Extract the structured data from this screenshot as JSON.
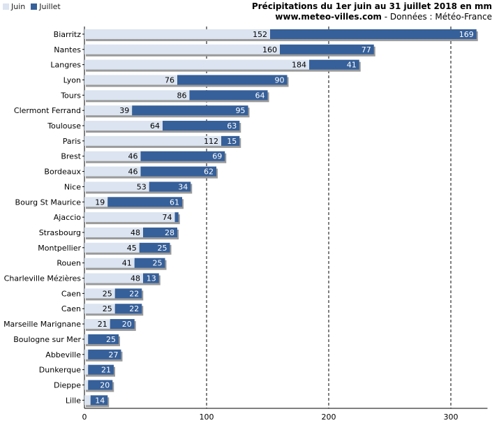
{
  "legend": {
    "juin": "Juin",
    "juillet": "Juillet"
  },
  "header": {
    "title": "Précipitations du 1er juin au 31 juillet 2018 en mm",
    "site": "www.meteo-villes.com",
    "source": " - Données : Météo-France"
  },
  "colors": {
    "juin": "#dbe4f0",
    "juillet": "#36609a",
    "shadow": "#9a9a9a"
  },
  "chart_data": {
    "type": "bar",
    "orientation": "horizontal",
    "stacked": true,
    "title": "Précipitations du 1er juin au 31 juillet 2018 en mm",
    "xlabel": "",
    "ylabel": "",
    "xlim": [
      0,
      330
    ],
    "xticks": [
      0,
      100,
      200,
      300
    ],
    "categories": [
      "Biarritz",
      "Nantes",
      "Langres",
      "Lyon",
      "Tours",
      "Clermont Ferrand",
      "Toulouse",
      "Paris",
      "Brest",
      "Bordeaux",
      "Nice",
      "Bourg St Maurice",
      "Ajaccio",
      "Strasbourg",
      "Montpellier",
      "Rouen",
      "Charleville Mézières",
      "Caen",
      "Caen",
      "Marseille Marignane",
      "Boulogne sur Mer",
      "Abbeville",
      "Dunkerque",
      "Dieppe",
      "Lille"
    ],
    "series": [
      {
        "name": "Juin",
        "values": [
          152,
          160,
          184,
          76,
          86,
          39,
          64,
          112,
          46,
          46,
          53,
          19,
          74,
          48,
          45,
          41,
          48,
          25,
          25,
          21,
          3,
          3,
          3,
          3,
          5
        ],
        "labels": [
          "152",
          "160",
          "184",
          "76",
          "86",
          "39",
          "64",
          "112",
          "46",
          "46",
          "53",
          "19",
          "74",
          "48",
          "45",
          "41",
          "48",
          "25",
          "25",
          "21",
          "",
          "",
          "",
          "",
          ""
        ]
      },
      {
        "name": "Juillet",
        "values": [
          169,
          77,
          41,
          90,
          64,
          95,
          63,
          15,
          69,
          62,
          34,
          61,
          3,
          28,
          25,
          25,
          13,
          22,
          22,
          20,
          25,
          27,
          21,
          20,
          14
        ],
        "labels": [
          "169",
          "77",
          "41",
          "90",
          "64",
          "95",
          "63",
          "15",
          "69",
          "62",
          "34",
          "61",
          "",
          "28",
          "25",
          "25",
          "13",
          "22",
          "22",
          "20",
          "25",
          "27",
          "21",
          "20",
          "14"
        ]
      }
    ]
  }
}
